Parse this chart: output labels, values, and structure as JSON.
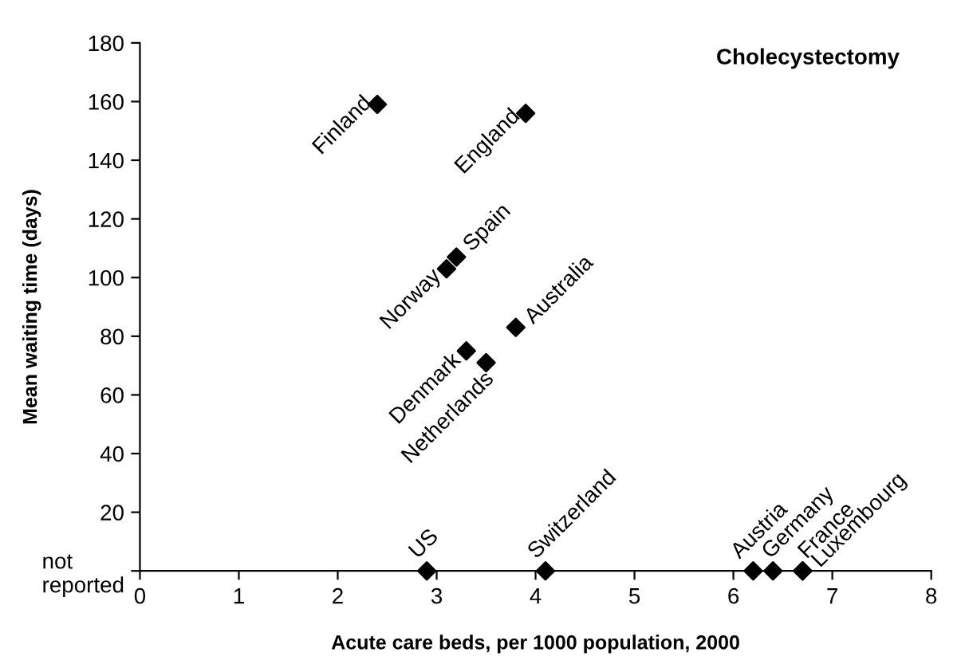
{
  "chart_data": {
    "type": "scatter",
    "title": "Cholecystectomy",
    "xlabel": "Acute care beds, per 1000 population, 2000",
    "ylabel": "Mean waiting time (days)",
    "series": [
      {
        "color": "#000000",
        "x": [
          2.4,
          3.9,
          3.1,
          3.2,
          3.8,
          3.3,
          3.5,
          2.9,
          4.1,
          6.2,
          6.4,
          6.7,
          6.7
        ],
        "values": [
          159,
          156,
          103,
          107,
          83,
          75,
          71,
          0,
          0,
          0,
          0,
          0,
          0
        ]
      }
    ],
    "annotations": [
      {
        "text": "Finland",
        "x": 2.4,
        "y": 159
      },
      {
        "text": "England",
        "x": 3.9,
        "y": 156
      },
      {
        "text": "Norway",
        "x": 3.1,
        "y": 103
      },
      {
        "text": "Spain",
        "x": 3.2,
        "y": 107
      },
      {
        "text": "Australia",
        "x": 3.8,
        "y": 83
      },
      {
        "text": "Denmark",
        "x": 3.3,
        "y": 75
      },
      {
        "text": "Netherlands",
        "x": 3.5,
        "y": 71
      },
      {
        "text": "US",
        "x": 2.9,
        "y": 0
      },
      {
        "text": "Switzerland",
        "x": 4.1,
        "y": 0
      },
      {
        "text": "Austria",
        "x": 6.2,
        "y": 0
      },
      {
        "text": "Germany",
        "x": 6.4,
        "y": 0
      },
      {
        "text": "France",
        "x": 6.7,
        "y": 0
      },
      {
        "text": "Luxembourg",
        "x": 6.7,
        "y": 0
      }
    ],
    "xlim": [
      0,
      8
    ],
    "xticks": [
      0,
      1,
      2,
      3,
      4,
      5,
      6,
      7,
      8
    ],
    "ylim": [
      0,
      180
    ],
    "yticks": [
      {
        "value": 0,
        "label": "not\nreported"
      },
      20,
      40,
      60,
      80,
      100,
      120,
      140,
      160,
      180
    ],
    "marker": "diamond",
    "grid": false,
    "legend": false
  }
}
